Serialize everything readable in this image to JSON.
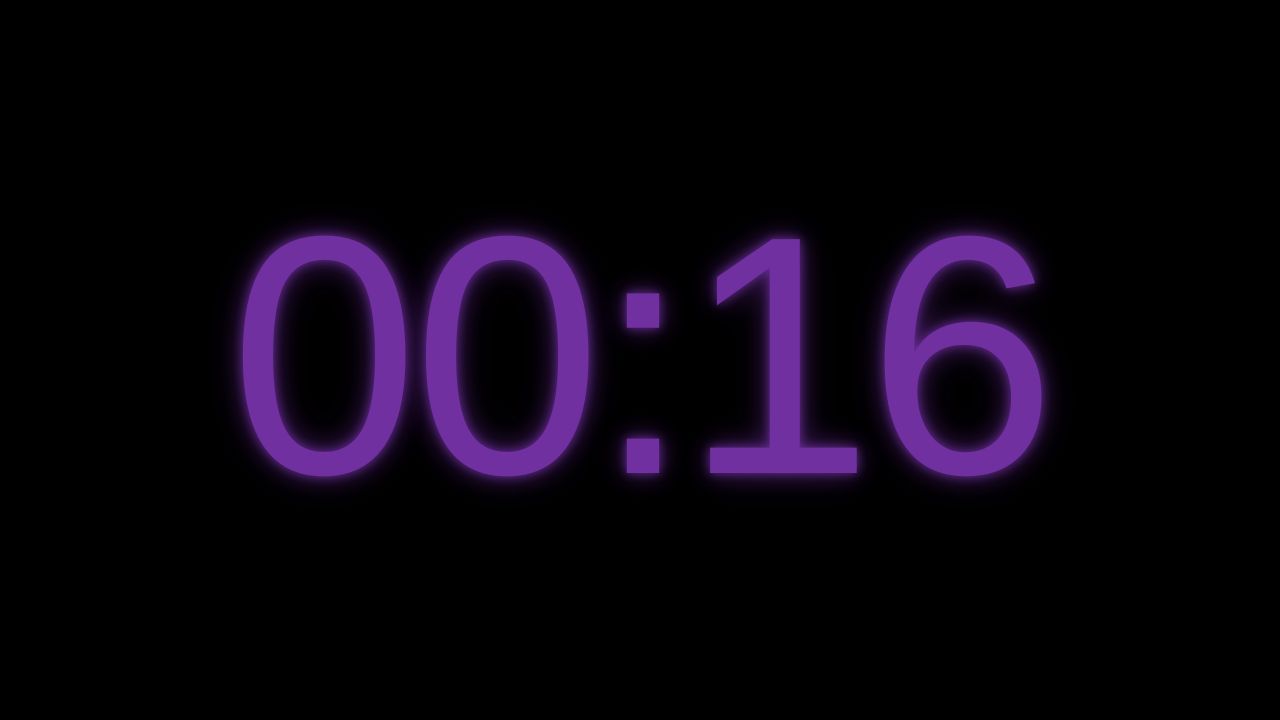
{
  "timer": {
    "display": "00:16",
    "color": "#7030A0"
  },
  "background": {
    "color": "#000000"
  }
}
